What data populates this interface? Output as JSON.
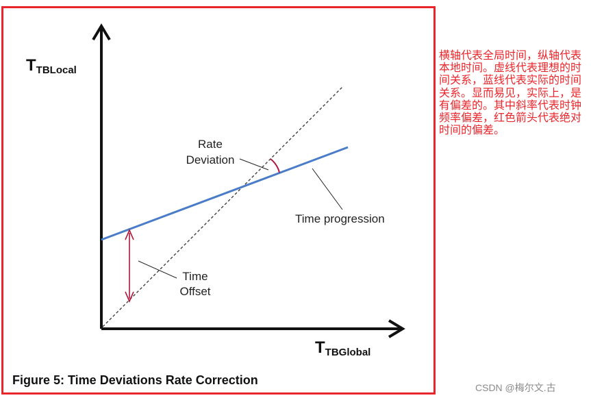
{
  "figure": {
    "y_axis_title": "T",
    "y_axis_subscript": "TBLocal",
    "x_axis_title": "T",
    "x_axis_subscript": "TBGlobal",
    "rate_deviation_line1": "Rate",
    "rate_deviation_line2": "Deviation",
    "time_progression": "Time progression",
    "time_offset_line1": "Time",
    "time_offset_line2": "Offset",
    "caption": "Figure 5: Time Deviations Rate Correction",
    "colors": {
      "frame": "#e8262b",
      "progression_line": "#4a7cc9",
      "annotation_arrow": "#b0163b",
      "ideal_line": "#333333"
    }
  },
  "side_note": "横轴代表全局时间，纵轴代表本地时间。虚线代表理想的时间关系，蓝线代表实际的时间关系。显而易见，实际上，是有偏差的。其中斜率代表时钟频率偏差，红色箭头代表绝对时间的偏差。",
  "watermark": "CSDN @梅尔文.古"
}
